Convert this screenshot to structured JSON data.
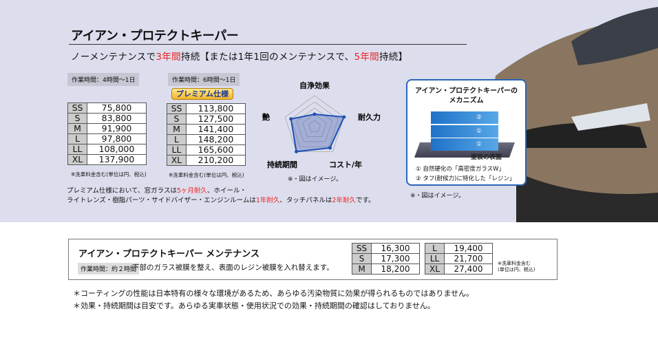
{
  "header": {
    "title": "アイアン・プロテクトキーパー",
    "sub_a": "ノーメンテナンスで",
    "sub_b": "3年間",
    "sub_c": "持続【または1年1回のメンテナンスで、",
    "sub_d": "5年間",
    "sub_e": "持続】"
  },
  "standard": {
    "work_time": "作業時間：4時間〜1日",
    "rows": [
      [
        "SS",
        "75,800"
      ],
      [
        "S",
        "83,800"
      ],
      [
        "M",
        "91,900"
      ],
      [
        "L",
        "97,800"
      ],
      [
        "LL",
        "108,000"
      ],
      [
        "XL",
        "137,900"
      ]
    ],
    "note": "※洗車料金含む(単位は円、税込)"
  },
  "premium": {
    "work_time": "作業時間：6時間〜1日",
    "badge": "プレミアム仕様",
    "rows": [
      [
        "SS",
        "113,800"
      ],
      [
        "S",
        "127,500"
      ],
      [
        "M",
        "141,400"
      ],
      [
        "L",
        "148,200"
      ],
      [
        "LL",
        "165,600"
      ],
      [
        "XL",
        "210,200"
      ]
    ],
    "note": "※洗車料金含む(単位は円、税込)"
  },
  "radar": {
    "axes": [
      "自浄効果",
      "耐久力",
      "コスト/年",
      "持続期間",
      "艶"
    ],
    "values": [
      0.4,
      1.0,
      0.85,
      1.0,
      0.8
    ],
    "note": "※・図はイメージ。",
    "color": "#1f4fb5"
  },
  "premium_note": {
    "l1a": "プレミアム仕様において、窓ガラスは",
    "l1b": "5ヶ月耐久",
    "l1c": "、ホイール・",
    "l2a": "ライトレンズ・樹脂パーツ・サイドバイザー・エンジンルームは",
    "l2b": "1年耐久",
    "l2c": "、タッチパネルは",
    "l2d": "2年耐久",
    "l2e": "です。"
  },
  "mechanism": {
    "title1": "アイアン・プロテクトキーパーの",
    "title2": "メカニズム",
    "layers": [
      "②",
      "①",
      "①"
    ],
    "base": "塗装の表面",
    "item1": "① 自然硬化の「高密度ガラスW」",
    "item2": "② タフ(耐候力)に特化した「レジン」",
    "note": "※・図はイメージ。"
  },
  "maintenance": {
    "title": "アイアン・プロテクトキーパー メンテナンス",
    "work_time": "作業時間：約２時間",
    "desc": "下部のガラス被膜を整え、表面のレジン被膜を入れ替えます。",
    "left": [
      [
        "SS",
        "16,300"
      ],
      [
        "S",
        "17,300"
      ],
      [
        "M",
        "18,200"
      ]
    ],
    "right": [
      [
        "L",
        "19,400"
      ],
      [
        "LL",
        "21,700"
      ],
      [
        "XL",
        "27,400"
      ]
    ],
    "note1": "※洗車料金含む",
    "note2": "(単位は円、税込)"
  },
  "disclaimers": [
    "＊コーティングの性能は日本特有の様々な環境があるため、あらゆる汚染物質に効果が得られるものではありません。",
    "＊効果・持続期間は目安です。あらゆる実車状態・使用状況での効果・持続期間の確認はしておりません。"
  ]
}
